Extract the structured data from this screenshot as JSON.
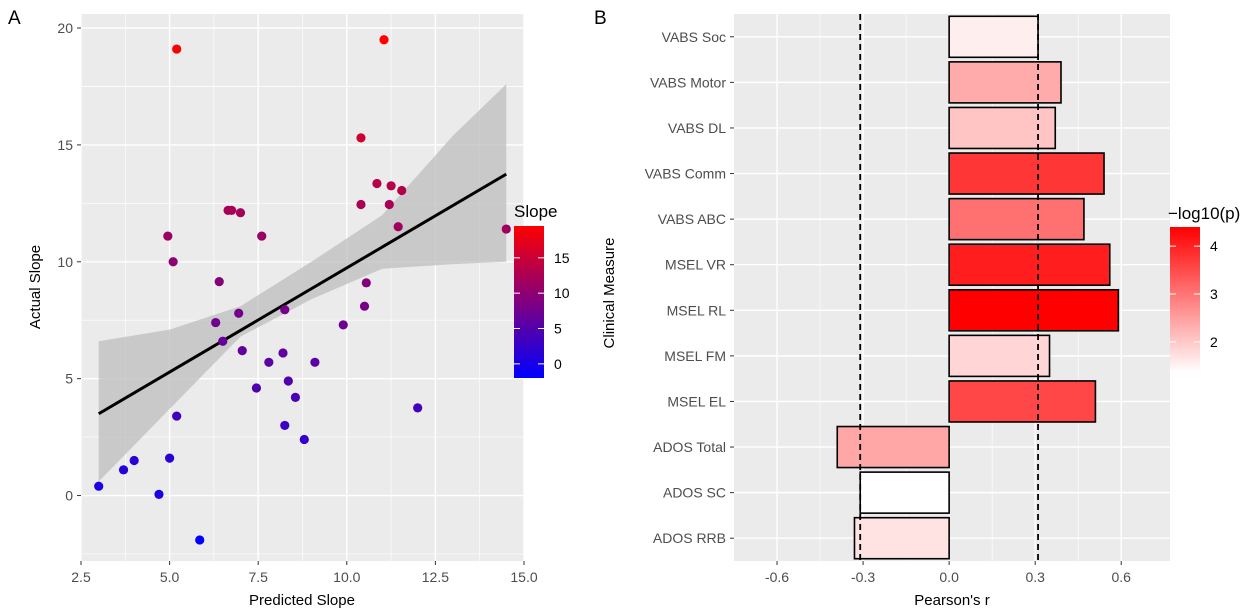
{
  "chart_data": [
    {
      "panel": "A",
      "type": "scatter",
      "xlabel": "Predicted Slope",
      "ylabel": "Actual Slope",
      "xlim": [
        2.5,
        15.0
      ],
      "ylim": [
        -2.8,
        20.6
      ],
      "xticks": [
        2.5,
        5.0,
        7.5,
        10.0,
        12.5,
        15.0
      ],
      "xtick_labels": [
        "2.5",
        "5.0",
        "7.5",
        "10.0",
        "12.5",
        "15.0"
      ],
      "yticks": [
        0,
        5,
        10,
        15,
        20
      ],
      "ytick_labels": [
        "0",
        "5",
        "10",
        "15",
        "20"
      ],
      "grid": true,
      "legend": {
        "title": "Slope",
        "placement": "right",
        "range": [
          -2,
          19.5
        ],
        "colors": [
          "#0000ff",
          "#ff0000"
        ],
        "ticks": [
          0,
          5,
          10,
          15
        ],
        "tick_labels": [
          "0",
          "5",
          "10",
          "15"
        ]
      },
      "fit_line": {
        "x": [
          3.0,
          14.5
        ],
        "y": [
          3.5,
          13.75
        ],
        "color": "#000000"
      },
      "ci_band": {
        "x": [
          3.0,
          5.0,
          7.0,
          9.0,
          11.0,
          13.0,
          14.5
        ],
        "lower": [
          0.6,
          3.7,
          6.8,
          8.4,
          9.7,
          9.9,
          10.0
        ],
        "upper": [
          6.6,
          7.1,
          8.1,
          10.0,
          12.0,
          15.4,
          17.6
        ]
      },
      "points": [
        {
          "x": 3.0,
          "y": 0.4
        },
        {
          "x": 3.7,
          "y": 1.1
        },
        {
          "x": 4.0,
          "y": 1.5
        },
        {
          "x": 4.7,
          "y": 0.05
        },
        {
          "x": 5.0,
          "y": 1.6
        },
        {
          "x": 5.85,
          "y": -1.9
        },
        {
          "x": 5.2,
          "y": 3.4
        },
        {
          "x": 4.95,
          "y": 11.1
        },
        {
          "x": 5.1,
          "y": 10.0
        },
        {
          "x": 5.2,
          "y": 19.1
        },
        {
          "x": 6.3,
          "y": 7.4
        },
        {
          "x": 6.4,
          "y": 9.15
        },
        {
          "x": 6.5,
          "y": 6.6
        },
        {
          "x": 6.65,
          "y": 12.2
        },
        {
          "x": 6.75,
          "y": 12.2
        },
        {
          "x": 6.95,
          "y": 7.8
        },
        {
          "x": 7.0,
          "y": 12.1
        },
        {
          "x": 7.05,
          "y": 6.2
        },
        {
          "x": 7.45,
          "y": 4.6
        },
        {
          "x": 7.6,
          "y": 11.1
        },
        {
          "x": 7.8,
          "y": 5.7
        },
        {
          "x": 8.2,
          "y": 6.1
        },
        {
          "x": 8.25,
          "y": 7.95
        },
        {
          "x": 8.25,
          "y": 3.0
        },
        {
          "x": 8.35,
          "y": 4.9
        },
        {
          "x": 8.55,
          "y": 4.2
        },
        {
          "x": 8.8,
          "y": 2.4
        },
        {
          "x": 9.1,
          "y": 5.7
        },
        {
          "x": 9.9,
          "y": 7.3
        },
        {
          "x": 10.4,
          "y": 15.3
        },
        {
          "x": 10.4,
          "y": 12.45
        },
        {
          "x": 10.5,
          "y": 8.1
        },
        {
          "x": 10.55,
          "y": 9.1
        },
        {
          "x": 10.85,
          "y": 13.35
        },
        {
          "x": 11.05,
          "y": 19.5
        },
        {
          "x": 11.2,
          "y": 12.45
        },
        {
          "x": 11.25,
          "y": 13.25
        },
        {
          "x": 11.45,
          "y": 11.5
        },
        {
          "x": 11.55,
          "y": 13.05
        },
        {
          "x": 12.0,
          "y": 3.75
        },
        {
          "x": 14.5,
          "y": 11.4
        }
      ]
    },
    {
      "panel": "B",
      "type": "bar",
      "orientation": "horizontal",
      "xlabel": "Pearson's r",
      "ylabel": "Clinical Measure",
      "xlim": [
        -0.75,
        0.77
      ],
      "xticks": [
        -0.6,
        -0.3,
        0.0,
        0.3,
        0.6
      ],
      "xtick_labels": [
        "-0.6",
        "-0.3",
        "0.0",
        "0.3",
        "0.6"
      ],
      "reference_lines": [
        -0.31,
        0.31
      ],
      "grid": true,
      "categories": [
        "VABS Soc",
        "VABS Motor",
        "VABS DL",
        "VABS Comm",
        "VABS ABC",
        "MSEL VR",
        "MSEL RL",
        "MSEL FM",
        "MSEL EL",
        "ADOS Total",
        "ADOS SC",
        "ADOS RRB"
      ],
      "values": [
        0.31,
        0.39,
        0.37,
        0.54,
        0.47,
        0.56,
        0.59,
        0.35,
        0.51,
        -0.39,
        -0.31,
        -0.33
      ],
      "neg_log10_p": [
        1.55,
        2.35,
        2.05,
        3.75,
        3.05,
        4.05,
        4.4,
        1.85,
        3.55,
        2.4,
        1.35,
        1.7
      ],
      "legend": {
        "title": "−log10(p)",
        "placement": "right",
        "range": [
          1.35,
          4.4
        ],
        "colors": [
          "#ffffff",
          "#ff0000"
        ],
        "ticks": [
          2,
          3,
          4
        ],
        "tick_labels": [
          "2",
          "3",
          "4"
        ]
      }
    }
  ]
}
